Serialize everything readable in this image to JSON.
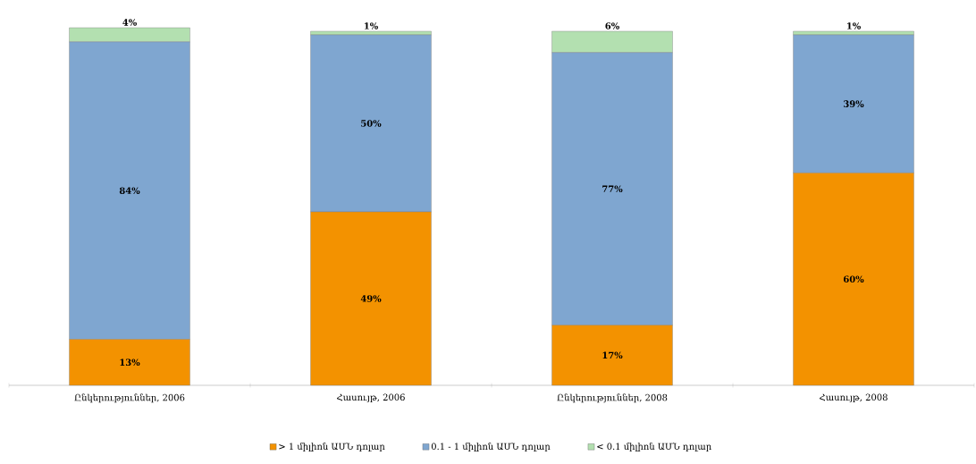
{
  "chart_data": {
    "type": "bar",
    "stacked": true,
    "categories": [
      "Ընկերություններ, 2006",
      "Հասույթ, 2006",
      "Ընկերություններ, 2008",
      "Հասույթ, 2008"
    ],
    "series": [
      {
        "name": "> 1 միլիոն ԱՄՆ դոլար",
        "color": "#f39200",
        "values": [
          13,
          49,
          17,
          60
        ],
        "value_labels": [
          "13%",
          "49%",
          "17%",
          "60%"
        ]
      },
      {
        "name": "0.1 - 1 միլիոն ԱՄՆ դոլար",
        "color": "#7fa6d0",
        "values": [
          84,
          50,
          77,
          39
        ],
        "value_labels": [
          "84%",
          "50%",
          "77%",
          "39%"
        ]
      },
      {
        "name": "< 0.1 միլիոն ԱՄՆ դոլար",
        "color": "#b3e0b0",
        "values": [
          4,
          1,
          6,
          1
        ],
        "value_labels": [
          "4%",
          "1%",
          "6%",
          "1%"
        ]
      }
    ],
    "legend": "bottom"
  }
}
